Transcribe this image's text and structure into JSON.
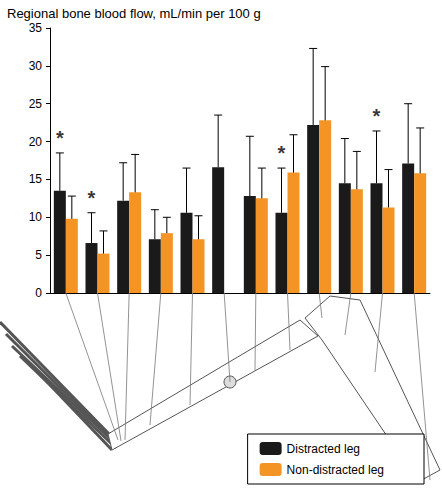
{
  "chart_data": {
    "type": "bar",
    "title": "Regional bone blood flow, mL/min per 100 g",
    "categories": [
      null,
      null,
      null,
      null,
      null,
      null,
      null,
      null,
      null,
      null,
      null,
      null
    ],
    "series": [
      {
        "name": "Distracted leg",
        "color": "#1a1a1a",
        "values": [
          13.5,
          6.6,
          12.2,
          7.1,
          10.6,
          16.6,
          12.8,
          10.6,
          22.2,
          14.5,
          14.5,
          17.1
        ],
        "errors": [
          5.0,
          4.0,
          5.0,
          3.9,
          5.9,
          6.9,
          7.9,
          5.9,
          10.1,
          5.9,
          6.9,
          7.9
        ]
      },
      {
        "name": "Non-distracted leg",
        "color": "#f39425",
        "values": [
          9.8,
          5.2,
          13.3,
          7.9,
          7.1,
          null,
          12.5,
          15.9,
          22.8,
          13.7,
          11.3,
          15.8
        ],
        "errors": [
          3.0,
          3.0,
          5.0,
          2.1,
          3.1,
          null,
          4.0,
          5.0,
          7.1,
          5.0,
          5.0,
          6.0
        ]
      }
    ],
    "annotations": [
      {
        "index": 0,
        "text": "*"
      },
      {
        "index": 1,
        "text": "*"
      },
      {
        "index": 7,
        "text": "*"
      },
      {
        "index": 10,
        "text": "*"
      }
    ],
    "ylim": [
      0,
      35
    ],
    "yticks": [
      0,
      5,
      10,
      15,
      20,
      25,
      30,
      35
    ],
    "grid": false,
    "legend": "bottom right"
  }
}
